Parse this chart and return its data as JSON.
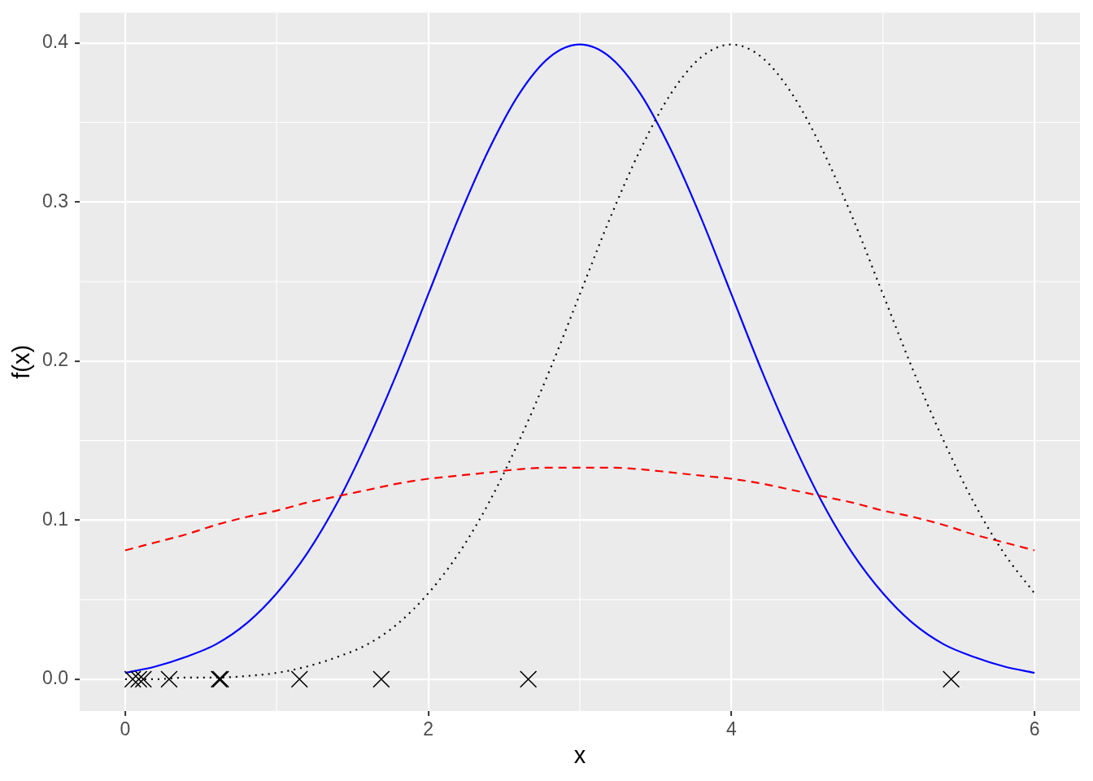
{
  "chart_data": {
    "type": "line",
    "xlabel": "x",
    "ylabel": "f(x)",
    "xlim": [
      -0.3,
      6.3
    ],
    "ylim": [
      -0.02,
      0.419
    ],
    "xticks": [
      0,
      2,
      4,
      6
    ],
    "yticks": [
      {
        "value": 0,
        "label": "0.0"
      },
      {
        "value": 0.1,
        "label": "0.1"
      },
      {
        "value": 0.2,
        "label": "0.2"
      },
      {
        "value": 0.3,
        "label": "0.3"
      },
      {
        "value": 0.4,
        "label": "0.4"
      }
    ],
    "grid": true,
    "series": [
      {
        "type": "line",
        "color": "#0000ff",
        "line_style": "solid",
        "x": [
          0,
          0.2,
          0.4,
          0.6,
          0.8,
          1,
          1.2,
          1.4,
          1.6,
          1.8,
          2,
          2.2,
          2.4,
          2.6,
          2.8,
          3,
          3.2,
          3.4,
          3.6,
          3.8,
          4,
          4.2,
          4.4,
          4.6,
          4.8,
          5,
          5.2,
          5.4,
          5.6,
          5.8,
          6
        ],
        "values": [
          0.004,
          0.008,
          0.014,
          0.022,
          0.035,
          0.054,
          0.079,
          0.111,
          0.15,
          0.194,
          0.242,
          0.29,
          0.333,
          0.368,
          0.391,
          0.399,
          0.391,
          0.368,
          0.333,
          0.29,
          0.242,
          0.194,
          0.15,
          0.111,
          0.079,
          0.054,
          0.035,
          0.022,
          0.014,
          0.008,
          0.004
        ]
      },
      {
        "type": "line",
        "color": "#ff0000",
        "line_style": "dashed",
        "x": [
          0,
          0.2,
          0.4,
          0.6,
          0.8,
          1,
          1.2,
          1.4,
          1.6,
          1.8,
          2,
          2.2,
          2.4,
          2.6,
          2.8,
          3,
          3.2,
          3.4,
          3.6,
          3.8,
          4,
          4.2,
          4.4,
          4.6,
          4.8,
          5,
          5.2,
          5.4,
          5.6,
          5.8,
          6
        ],
        "values": [
          0.081,
          0.086,
          0.091,
          0.097,
          0.102,
          0.106,
          0.111,
          0.115,
          0.119,
          0.123,
          0.126,
          0.128,
          0.13,
          0.132,
          0.133,
          0.133,
          0.133,
          0.132,
          0.13,
          0.128,
          0.126,
          0.123,
          0.119,
          0.115,
          0.111,
          0.106,
          0.102,
          0.097,
          0.091,
          0.086,
          0.081
        ]
      },
      {
        "type": "line",
        "color": "#000000",
        "line_style": "dotted",
        "x": [
          0,
          0.2,
          0.4,
          0.6,
          0.8,
          1,
          1.2,
          1.4,
          1.6,
          1.8,
          2,
          2.2,
          2.4,
          2.6,
          2.8,
          3,
          3.2,
          3.4,
          3.6,
          3.8,
          4,
          4.2,
          4.4,
          4.6,
          4.8,
          5,
          5.2,
          5.4,
          5.6,
          5.8,
          6
        ],
        "values": [
          0.0,
          0.0,
          0.001,
          0.001,
          0.002,
          0.004,
          0.008,
          0.014,
          0.022,
          0.035,
          0.054,
          0.079,
          0.111,
          0.15,
          0.194,
          0.242,
          0.29,
          0.333,
          0.368,
          0.391,
          0.399,
          0.391,
          0.368,
          0.333,
          0.29,
          0.242,
          0.194,
          0.15,
          0.111,
          0.079,
          0.054
        ]
      },
      {
        "type": "scatter",
        "color": "#000000",
        "marker": "cross",
        "x": [
          0.05,
          0.09,
          0.12,
          0.29,
          0.62,
          0.63,
          1.15,
          1.69,
          2.66,
          5.45
        ],
        "values": [
          0,
          0,
          0,
          0,
          0,
          0,
          0,
          0,
          0,
          0
        ]
      }
    ]
  }
}
